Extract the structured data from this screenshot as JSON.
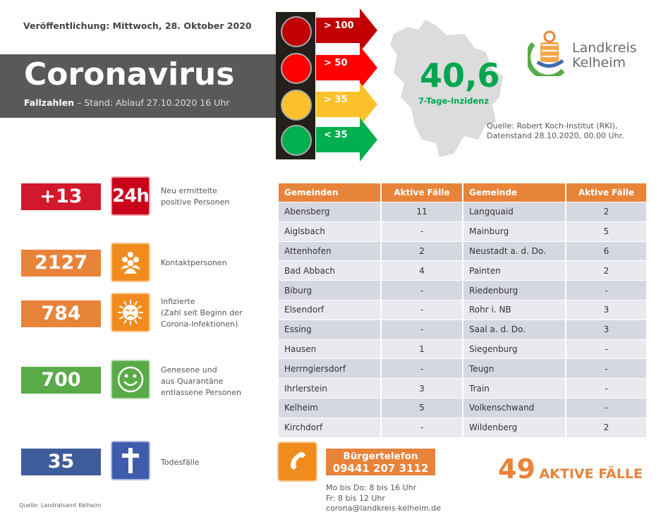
{
  "header": {
    "publication": "Veröffentlichung: Mittwoch, 28. Oktober 2020",
    "title": "Coronavirus",
    "subtitle_bold": "Fallzahlen",
    "subtitle": " – Stand: Ablauf 27.10.2020 16 Uhr"
  },
  "traffic_light": [
    {
      "label": "> 100",
      "color": "#c00000"
    },
    {
      "label": "> 50",
      "color": "#ff0000"
    },
    {
      "label": "> 35",
      "color": "#ffc12b"
    },
    {
      "label": "< 35",
      "color": "#00b050"
    }
  ],
  "incidence": {
    "value": "40,6",
    "label": "7-Tage-Inzidenz",
    "source_line1": "Quelle: Robert Koch-Institut (RKI),",
    "source_line2": "Datenstand 28.10.2020, 00.00 Uhr."
  },
  "logo": {
    "line1": "Landkreis",
    "line2": "Kelheim"
  },
  "stats": [
    {
      "value": "+13",
      "icon": "24h-icon",
      "icon_text": "24h",
      "label_lines": [
        "Neu ermittelte",
        "positive Personen"
      ],
      "color": "#d2192b"
    },
    {
      "value": "2127",
      "icon": "group-icon",
      "label_lines": [
        "Kontaktpersonen"
      ],
      "color": "#e8833a"
    },
    {
      "value": "784",
      "icon": "virus-icon",
      "label_lines": [
        "Infizierte",
        "(Zahl seit Beginn der",
        "Corona-Infektionen)"
      ],
      "color": "#e8833a"
    },
    {
      "value": "700",
      "icon": "smiley-icon",
      "label_lines": [
        "Genesene und",
        "aus Quarantäne",
        "entlassene Personen"
      ],
      "color": "#5aaa48"
    },
    {
      "value": "35",
      "icon": "cross-icon",
      "label_lines": [
        "Todesfälle"
      ],
      "color": "#3e5c99"
    }
  ],
  "table": {
    "headers": [
      "Gemeinden",
      "Aktive Fälle",
      "Gemeinde",
      "Aktive Fälle"
    ],
    "rows": [
      [
        "Abensberg",
        "11",
        "Langquaid",
        "2"
      ],
      [
        "Aiglsbach",
        "-",
        "Mainburg",
        "5"
      ],
      [
        "Attenhofen",
        "2",
        "Neustadt a. d. Do.",
        "6"
      ],
      [
        "Bad Abbach",
        "4",
        "Painten",
        "2"
      ],
      [
        "Biburg",
        "-",
        "Riedenburg",
        "-"
      ],
      [
        "Elsendorf",
        "-",
        "Rohr i. NB",
        "3"
      ],
      [
        "Essing",
        "-",
        "Saal a. d. Do.",
        "3"
      ],
      [
        "Hausen",
        "1",
        "Siegenburg",
        "-"
      ],
      [
        "Herrngiersdorf",
        "-",
        "Teugn",
        "-"
      ],
      [
        "Ihrlerstein",
        "3",
        "Train",
        "-"
      ],
      [
        "Kelheim",
        "5",
        "Volkenschwand",
        "-"
      ],
      [
        "Kirchdorf",
        "-",
        "Wildenberg",
        "2"
      ]
    ]
  },
  "hotline": {
    "title": "Bürgertelefon",
    "number": "09441 207 3112",
    "hours1": "Mo bis Do: 8 bis 16 Uhr",
    "hours2": "Fr: 8 bis 12 Uhr",
    "email": "corona@landkreis-kelheim.de"
  },
  "active": {
    "count": "49",
    "label": "AKTIVE FÄLLE"
  },
  "footer": {
    "source": "Quelle: Landratsamt Kelheim"
  }
}
